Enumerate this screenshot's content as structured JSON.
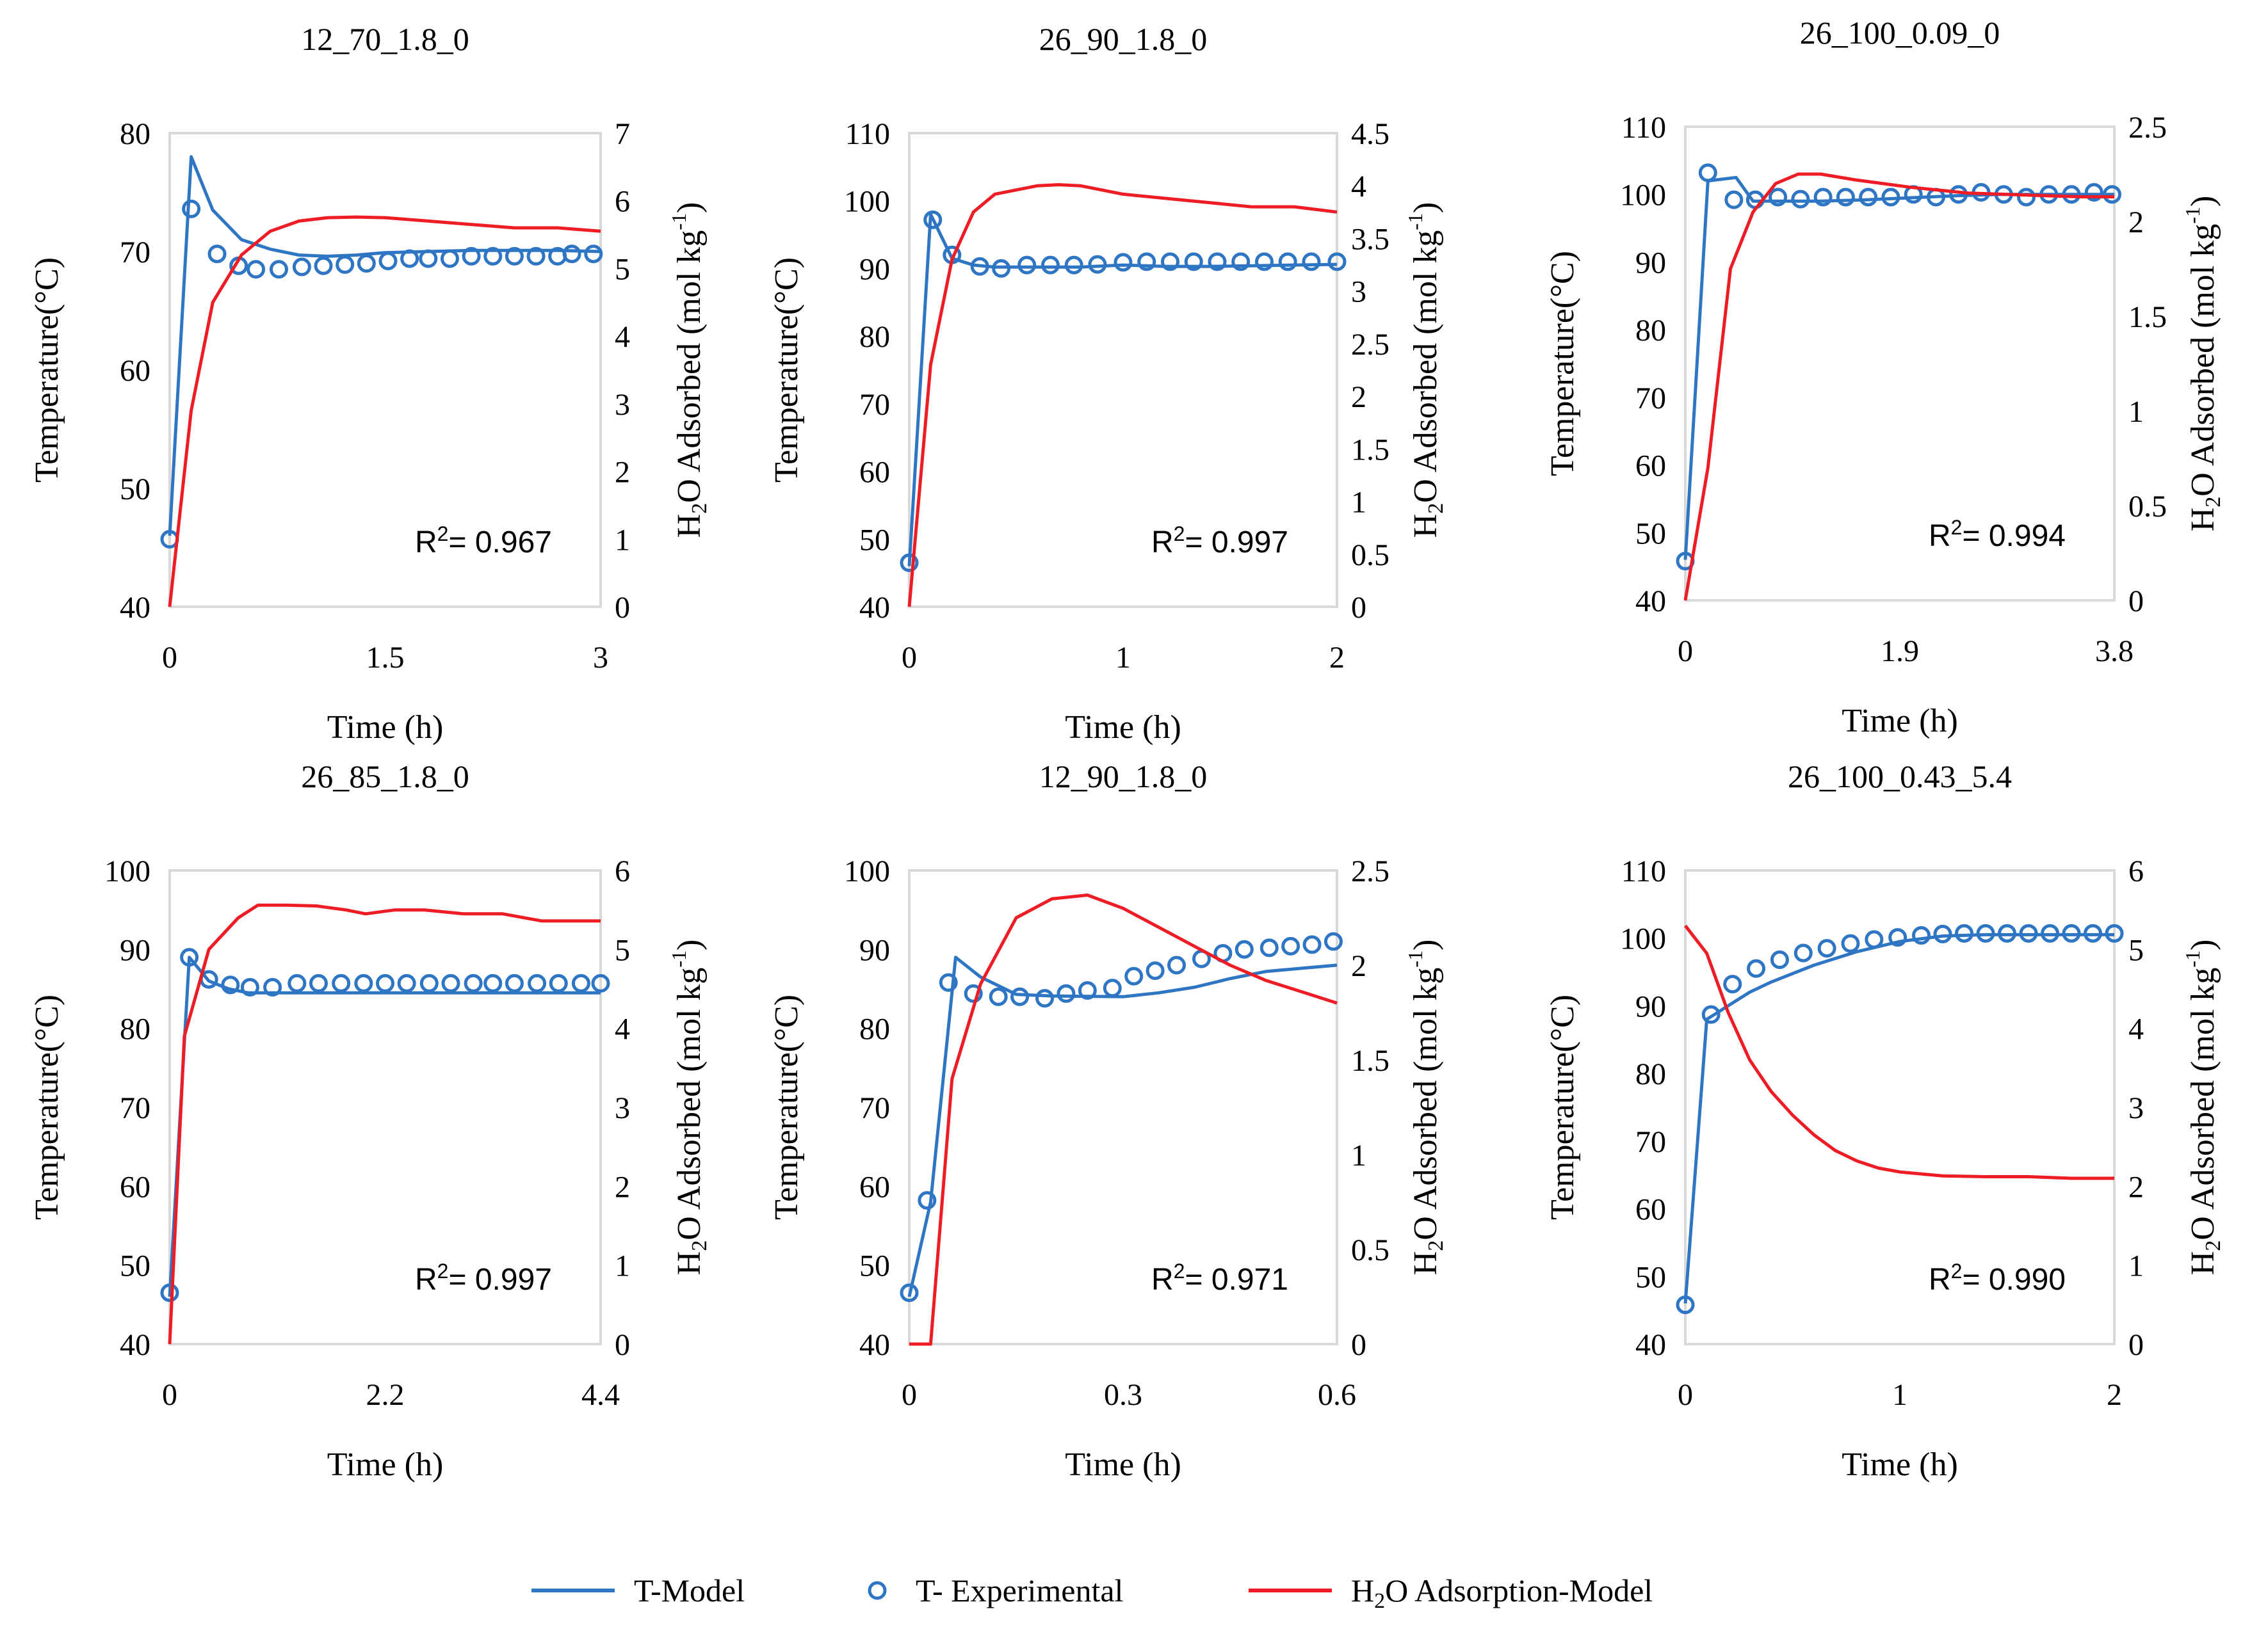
{
  "colors": {
    "model_t": "#2E75C3",
    "experimental": "#2E75C3",
    "h2o_model": "#EE1C25",
    "axis": "#000000",
    "grid": "#D9D9D9"
  },
  "chart_data": [
    {
      "type": "line",
      "title": "12_70_1.8_0",
      "xlabel": "Time (h)",
      "ylabel": "Temperature(°C)",
      "y2label_main": "H",
      "y2label_sub": "2",
      "y2label_rest": "O Adsorbed (mol kg",
      "y2label_sup": "-1",
      "y2label_end": ")",
      "xlim": [
        0,
        3
      ],
      "xticks": [
        "0",
        "1.5",
        "3"
      ],
      "ylim": [
        40,
        80
      ],
      "yticks": [
        "40",
        "50",
        "60",
        "70",
        "80"
      ],
      "y2lim": [
        0,
        7
      ],
      "y2ticks": [
        "0",
        "1",
        "2",
        "3",
        "4",
        "5",
        "6",
        "7"
      ],
      "r2_label": "R",
      "r2_sup": "2",
      "r2_value": "= 0.967",
      "series": [
        {
          "name": "T-Model",
          "axis": "left",
          "x": [
            0,
            0.15,
            0.3,
            0.5,
            0.7,
            0.9,
            1.1,
            1.3,
            1.5,
            1.8,
            2.1,
            2.4,
            2.7,
            3.0
          ],
          "y": [
            46,
            78,
            73.5,
            71,
            70.2,
            69.7,
            69.6,
            69.7,
            69.9,
            70,
            70.1,
            70.1,
            70.1,
            70
          ]
        },
        {
          "name": "T- Experimental",
          "axis": "left",
          "x": [
            0,
            0.15,
            0.33,
            0.48,
            0.6,
            0.76,
            0.92,
            1.07,
            1.22,
            1.37,
            1.52,
            1.67,
            1.8,
            1.95,
            2.1,
            2.25,
            2.4,
            2.55,
            2.7,
            2.8,
            2.95
          ],
          "y": [
            45.7,
            73.6,
            69.8,
            68.8,
            68.5,
            68.5,
            68.7,
            68.8,
            68.9,
            69,
            69.2,
            69.4,
            69.4,
            69.4,
            69.6,
            69.6,
            69.6,
            69.6,
            69.6,
            69.8,
            69.8
          ]
        },
        {
          "name": "H2O Adsorption-Model",
          "axis": "right",
          "x": [
            0,
            0.15,
            0.3,
            0.5,
            0.7,
            0.9,
            1.1,
            1.3,
            1.5,
            1.8,
            2.1,
            2.4,
            2.7,
            3.0
          ],
          "y": [
            0,
            2.9,
            4.5,
            5.2,
            5.55,
            5.7,
            5.75,
            5.76,
            5.75,
            5.7,
            5.65,
            5.6,
            5.6,
            5.55
          ]
        }
      ]
    },
    {
      "type": "line",
      "title": "26_90_1.8_0",
      "xlabel": "Time (h)",
      "ylabel": "Temperature(°C)",
      "y2label_main": "H",
      "y2label_sub": "2",
      "y2label_rest": "O Adsorbed (mol kg",
      "y2label_sup": "-1",
      "y2label_end": ")",
      "xlim": [
        0,
        2
      ],
      "xticks": [
        "0",
        "1",
        "2"
      ],
      "ylim": [
        40,
        110
      ],
      "yticks": [
        "40",
        "50",
        "60",
        "70",
        "80",
        "90",
        "100",
        "110"
      ],
      "y2lim": [
        0,
        4.5
      ],
      "y2ticks": [
        "0",
        "0.5",
        "1",
        "1.5",
        "2",
        "2.5",
        "3",
        "3.5",
        "4",
        "4.5"
      ],
      "r2_label": "R",
      "r2_sup": "2",
      "r2_value": "= 0.997",
      "series": [
        {
          "name": "T-Model",
          "axis": "left",
          "x": [
            0,
            0.1,
            0.2,
            0.3,
            0.4,
            0.6,
            0.8,
            1.0,
            1.2,
            1.4,
            1.6,
            1.8,
            2.0
          ],
          "y": [
            46,
            98,
            91.5,
            90.5,
            90.2,
            90.2,
            90.2,
            90.5,
            90.3,
            90.3,
            90.4,
            90.5,
            90.6
          ]
        },
        {
          "name": "T- Experimental",
          "axis": "left",
          "x": [
            0,
            0.11,
            0.2,
            0.33,
            0.43,
            0.55,
            0.66,
            0.77,
            0.88,
            1.0,
            1.11,
            1.22,
            1.33,
            1.44,
            1.55,
            1.66,
            1.77,
            1.88,
            2.0
          ],
          "y": [
            46.5,
            97.2,
            92,
            90.3,
            90,
            90.5,
            90.5,
            90.5,
            90.6,
            90.9,
            91,
            91,
            91,
            91,
            91,
            91,
            91,
            91,
            91
          ]
        },
        {
          "name": "H2O Adsorption-Model",
          "axis": "right",
          "x": [
            0,
            0.1,
            0.2,
            0.3,
            0.4,
            0.5,
            0.6,
            0.7,
            0.8,
            1.0,
            1.2,
            1.4,
            1.6,
            1.8,
            2.0
          ],
          "y": [
            0,
            2.3,
            3.3,
            3.75,
            3.92,
            3.96,
            4.0,
            4.01,
            4.0,
            3.92,
            3.88,
            3.84,
            3.8,
            3.8,
            3.75
          ]
        }
      ]
    },
    {
      "type": "line",
      "title": "26_100_0.09_0",
      "xlabel": "Time (h)",
      "ylabel": "Temperature(°C)",
      "y2label_main": "H",
      "y2label_sub": "2",
      "y2label_rest": "O Adsorbed (mol kg",
      "y2label_sup": "-1",
      "y2label_end": ")",
      "xlim": [
        0,
        3.8
      ],
      "xticks": [
        "0",
        "1.9",
        "3.8"
      ],
      "ylim": [
        40,
        110
      ],
      "yticks": [
        "40",
        "50",
        "60",
        "70",
        "80",
        "90",
        "100",
        "110"
      ],
      "y2lim": [
        0,
        2.5
      ],
      "y2ticks": [
        "0",
        "0.5",
        "1",
        "1.5",
        "2",
        "2.5"
      ],
      "r2_label": "R",
      "r2_sup": "2",
      "r2_value": "= 0.994",
      "series": [
        {
          "name": "T-Model",
          "axis": "left",
          "x": [
            0,
            0.2,
            0.45,
            0.6,
            0.8,
            1.2,
            1.6,
            2.0,
            2.4,
            2.8,
            3.2,
            3.6,
            3.8
          ],
          "y": [
            46,
            102,
            102.5,
            99,
            99,
            99,
            99.2,
            99.5,
            99.8,
            100,
            100,
            100,
            100
          ]
        },
        {
          "name": "T- Experimental",
          "axis": "left",
          "x": [
            0,
            0.2,
            0.43,
            0.62,
            0.82,
            1.02,
            1.22,
            1.42,
            1.62,
            1.82,
            2.02,
            2.22,
            2.42,
            2.62,
            2.82,
            3.02,
            3.22,
            3.42,
            3.62,
            3.78
          ],
          "y": [
            45.8,
            103.2,
            99.2,
            99.2,
            99.6,
            99.3,
            99.6,
            99.6,
            99.6,
            99.6,
            100,
            99.6,
            100,
            100.3,
            100,
            99.6,
            100,
            100,
            100.3,
            100
          ]
        },
        {
          "name": "H2O Adsorption-Model",
          "axis": "right",
          "x": [
            0,
            0.2,
            0.4,
            0.6,
            0.8,
            1.0,
            1.2,
            1.5,
            2.0,
            2.5,
            3.0,
            3.5,
            3.8
          ],
          "y": [
            0,
            0.7,
            1.75,
            2.05,
            2.2,
            2.25,
            2.25,
            2.22,
            2.18,
            2.15,
            2.14,
            2.13,
            2.13
          ]
        }
      ]
    },
    {
      "type": "line",
      "title": "26_85_1.8_0",
      "xlabel": "Time (h)",
      "ylabel": "Temperature(°C)",
      "y2label_main": "H",
      "y2label_sub": "2",
      "y2label_rest": "O Adsorbed (mol kg",
      "y2label_sup": "-1",
      "y2label_end": ")",
      "xlim": [
        0,
        4.4
      ],
      "xticks": [
        "0",
        "2.2",
        "4.4"
      ],
      "ylim": [
        40,
        100
      ],
      "yticks": [
        "40",
        "50",
        "60",
        "70",
        "80",
        "90",
        "100"
      ],
      "y2lim": [
        0,
        6
      ],
      "y2ticks": [
        "0",
        "1",
        "2",
        "3",
        "4",
        "5",
        "6"
      ],
      "r2_label": "R",
      "r2_sup": "2",
      "r2_value": "= 0.997",
      "series": [
        {
          "name": "T-Model",
          "axis": "left",
          "x": [
            0,
            0.2,
            0.4,
            0.6,
            0.8,
            1.0,
            1.5,
            2.0,
            2.5,
            3.0,
            3.5,
            4.0,
            4.4
          ],
          "y": [
            46,
            89,
            86,
            85,
            84.5,
            84.5,
            84.5,
            84.5,
            84.5,
            84.5,
            84.5,
            84.5,
            84.5
          ]
        },
        {
          "name": "T- Experimental",
          "axis": "left",
          "x": [
            0,
            0.2,
            0.4,
            0.62,
            0.82,
            1.05,
            1.3,
            1.52,
            1.75,
            1.98,
            2.2,
            2.42,
            2.65,
            2.87,
            3.1,
            3.3,
            3.52,
            3.75,
            3.97,
            4.2,
            4.4
          ],
          "y": [
            46.5,
            89,
            86.2,
            85.5,
            85.2,
            85.2,
            85.7,
            85.7,
            85.7,
            85.7,
            85.7,
            85.7,
            85.7,
            85.7,
            85.7,
            85.7,
            85.7,
            85.7,
            85.7,
            85.7,
            85.7
          ]
        },
        {
          "name": "H2O Adsorption-Model",
          "axis": "right",
          "x": [
            0,
            0.15,
            0.4,
            0.7,
            0.9,
            1.2,
            1.5,
            1.8,
            2.0,
            2.3,
            2.6,
            3.0,
            3.4,
            3.8,
            4.4
          ],
          "y": [
            0,
            3.9,
            5.0,
            5.4,
            5.56,
            5.56,
            5.55,
            5.5,
            5.45,
            5.5,
            5.5,
            5.45,
            5.45,
            5.36,
            5.36
          ]
        }
      ]
    },
    {
      "type": "line",
      "title": "12_90_1.8_0",
      "xlabel": "Time (h)",
      "ylabel": "Temperature(°C)",
      "y2label_main": "H",
      "y2label_sub": "2",
      "y2label_rest": "O Adsorbed (mol kg",
      "y2label_sup": "-1",
      "y2label_end": ")",
      "xlim": [
        0,
        0.6
      ],
      "xticks": [
        "0",
        "0.3",
        "0.6"
      ],
      "ylim": [
        40,
        100
      ],
      "yticks": [
        "40",
        "50",
        "60",
        "70",
        "80",
        "90",
        "100"
      ],
      "y2lim": [
        0,
        2.5
      ],
      "y2ticks": [
        "0",
        "0.5",
        "1",
        "1.5",
        "2",
        "2.5"
      ],
      "r2_label": "R",
      "r2_sup": "2",
      "r2_value": "= 0.971",
      "series": [
        {
          "name": "T-Model",
          "axis": "left",
          "x": [
            0,
            0.03,
            0.065,
            0.1,
            0.15,
            0.2,
            0.3,
            0.35,
            0.4,
            0.45,
            0.5,
            0.55,
            0.6
          ],
          "y": [
            46,
            58,
            89,
            86.5,
            84.3,
            84.1,
            84,
            84.5,
            85.2,
            86.3,
            87.2,
            87.6,
            88
          ]
        },
        {
          "name": "T- Experimental",
          "axis": "left",
          "x": [
            0,
            0.025,
            0.055,
            0.09,
            0.125,
            0.155,
            0.19,
            0.22,
            0.25,
            0.285,
            0.315,
            0.345,
            0.375,
            0.41,
            0.44,
            0.47,
            0.505,
            0.535,
            0.565,
            0.595
          ],
          "y": [
            46.5,
            58.2,
            85.8,
            84.4,
            84,
            84,
            83.8,
            84.4,
            84.8,
            85.1,
            86.6,
            87.3,
            88,
            88.8,
            89.5,
            90,
            90.2,
            90.4,
            90.6,
            91
          ]
        },
        {
          "name": "H2O Adsorption-Model",
          "axis": "right",
          "x": [
            0,
            0.03,
            0.06,
            0.1,
            0.15,
            0.2,
            0.25,
            0.3,
            0.35,
            0.4,
            0.45,
            0.5,
            0.55,
            0.6
          ],
          "y": [
            0,
            0,
            1.4,
            1.9,
            2.25,
            2.35,
            2.37,
            2.3,
            2.2,
            2.1,
            2.0,
            1.92,
            1.86,
            1.8
          ]
        }
      ]
    },
    {
      "type": "line",
      "title": "26_100_0.43_5.4",
      "xlabel": "Time (h)",
      "ylabel": "Temperature(°C)",
      "y2label_main": "H",
      "y2label_sub": "2",
      "y2label_rest": "O Adsorbed (mol kg",
      "y2label_sup": "-1",
      "y2label_end": ")",
      "xlim": [
        0,
        2
      ],
      "xticks": [
        "0",
        "1",
        "2"
      ],
      "ylim": [
        40,
        110
      ],
      "yticks": [
        "40",
        "50",
        "60",
        "70",
        "80",
        "90",
        "100",
        "110"
      ],
      "y2lim": [
        0,
        6
      ],
      "y2ticks": [
        "0",
        "1",
        "2",
        "3",
        "4",
        "5",
        "6"
      ],
      "r2_label": "R",
      "r2_sup": "2",
      "r2_value": "= 0.990",
      "series": [
        {
          "name": "T-Model",
          "axis": "left",
          "x": [
            0,
            0.1,
            0.2,
            0.3,
            0.4,
            0.6,
            0.8,
            1.0,
            1.2,
            1.4,
            1.6,
            1.8,
            2.0
          ],
          "y": [
            46,
            88,
            90,
            92,
            93.5,
            96,
            98,
            99.5,
            100.3,
            100.5,
            100.5,
            100.5,
            100.5
          ]
        },
        {
          "name": "T- Experimental",
          "axis": "left",
          "x": [
            0,
            0.12,
            0.22,
            0.33,
            0.44,
            0.55,
            0.66,
            0.77,
            0.88,
            0.99,
            1.1,
            1.2,
            1.3,
            1.4,
            1.5,
            1.6,
            1.7,
            1.8,
            1.9,
            2.0
          ],
          "y": [
            45.8,
            88.7,
            93.2,
            95.5,
            96.8,
            97.8,
            98.5,
            99.2,
            99.8,
            100.1,
            100.4,
            100.6,
            100.7,
            100.7,
            100.7,
            100.7,
            100.7,
            100.7,
            100.7,
            100.7
          ]
        },
        {
          "name": "H2O Adsorption-Model",
          "axis": "right",
          "x": [
            0,
            0.1,
            0.2,
            0.3,
            0.4,
            0.5,
            0.6,
            0.7,
            0.8,
            0.9,
            1.0,
            1.2,
            1.4,
            1.6,
            1.8,
            2.0
          ],
          "y": [
            5.3,
            4.95,
            4.2,
            3.6,
            3.2,
            2.9,
            2.65,
            2.45,
            2.32,
            2.23,
            2.18,
            2.13,
            2.12,
            2.12,
            2.1,
            2.1
          ]
        }
      ]
    }
  ],
  "legend": {
    "items": [
      {
        "label": "T-Model"
      },
      {
        "label": "T- Experimental"
      },
      {
        "label_main": "H",
        "label_sub": "2",
        "label_rest": "O Adsorption-Model"
      }
    ]
  }
}
